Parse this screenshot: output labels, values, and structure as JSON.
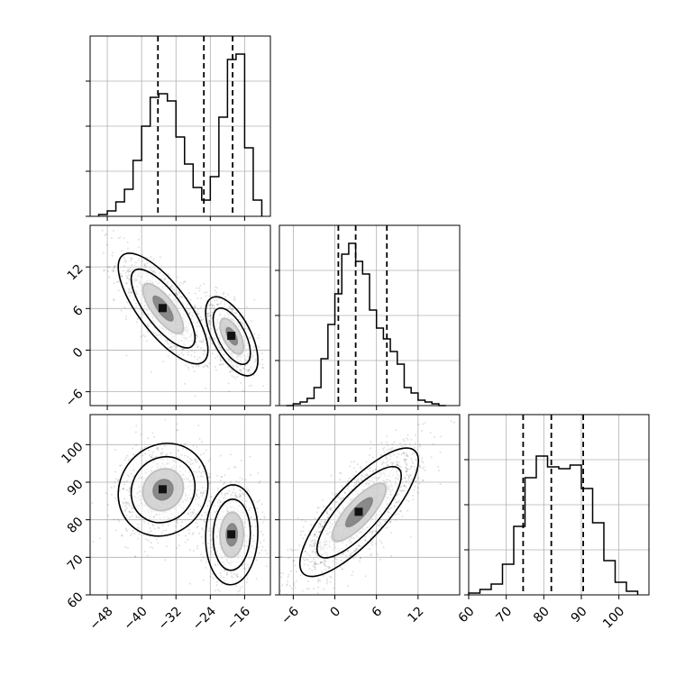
{
  "chart_data": {
    "type": "corner",
    "grid": true,
    "params": [
      {
        "id": "p0",
        "xlim": [
          -52,
          -10
        ],
        "ticks": [
          -48,
          -40,
          -32,
          -24,
          -16
        ]
      },
      {
        "id": "p1",
        "xlim": [
          -8,
          18
        ],
        "ylim": [
          -8,
          18
        ],
        "ticks": [
          -6,
          0,
          6,
          12
        ]
      },
      {
        "id": "p2",
        "xlim": [
          60,
          108
        ],
        "ylim": [
          60,
          108
        ],
        "ticks": [
          60,
          70,
          80,
          90,
          100
        ]
      }
    ],
    "histograms": [
      {
        "param": "p0",
        "ylim": [
          0,
          1.0
        ],
        "bin_edges": [
          -50,
          -48,
          -46,
          -44,
          -42,
          -40,
          -38,
          -36,
          -34,
          -32,
          -30,
          -28,
          -26,
          -24,
          -22,
          -20,
          -18,
          -16,
          -14,
          -12
        ],
        "counts": [
          0.01,
          0.03,
          0.08,
          0.15,
          0.31,
          0.5,
          0.66,
          0.68,
          0.64,
          0.44,
          0.29,
          0.16,
          0.09,
          0.22,
          0.55,
          0.87,
          0.9,
          0.38,
          0.09
        ],
        "quantiles": [
          -36.2,
          -25.5,
          -18.8
        ]
      },
      {
        "param": "p1",
        "ylim": [
          0,
          1.0
        ],
        "bin_edges": [
          -7,
          -6,
          -5,
          -4,
          -3,
          -2,
          -1,
          0,
          1,
          2,
          3,
          4,
          5,
          6,
          7,
          8,
          9,
          10,
          11,
          12,
          13,
          14,
          15,
          16
        ],
        "counts": [
          0.0,
          0.01,
          0.02,
          0.04,
          0.1,
          0.26,
          0.45,
          0.62,
          0.84,
          0.9,
          0.8,
          0.73,
          0.53,
          0.43,
          0.37,
          0.3,
          0.23,
          0.1,
          0.07,
          0.03,
          0.02,
          0.01,
          0.0
        ],
        "quantiles": [
          0.5,
          3.0,
          7.5
        ]
      },
      {
        "param": "p2",
        "ylim": [
          0,
          1.0
        ],
        "bin_edges": [
          60,
          63,
          66,
          69,
          72,
          75,
          78,
          81,
          84,
          87,
          90,
          93,
          96,
          99,
          102,
          105
        ],
        "counts": [
          0.01,
          0.03,
          0.06,
          0.17,
          0.38,
          0.65,
          0.77,
          0.71,
          0.7,
          0.72,
          0.59,
          0.4,
          0.19,
          0.07,
          0.02
        ],
        "quantiles": [
          74.5,
          82.0,
          90.5
        ]
      }
    ],
    "joint": [
      {
        "x": "p0",
        "y": "p1",
        "modes": [
          {
            "mean": [
              -35,
              6
            ],
            "sd": [
              5.5,
              4.2
            ],
            "rho": -0.75,
            "weight": 0.58
          },
          {
            "mean": [
              -19,
              2
            ],
            "sd": [
              3.2,
              3.0
            ],
            "rho": -0.6,
            "weight": 0.42
          }
        ]
      },
      {
        "x": "p0",
        "y": "p2",
        "modes": [
          {
            "mean": [
              -35,
              88
            ],
            "sd": [
              5.5,
              6.5
            ],
            "rho": 0.1,
            "weight": 0.58
          },
          {
            "mean": [
              -19,
              76
            ],
            "sd": [
              3.2,
              7.0
            ],
            "rho": 0.05,
            "weight": 0.42
          }
        ]
      },
      {
        "x": "p1",
        "y": "p2",
        "modes": [
          {
            "mean": [
              3.5,
              82
            ],
            "sd": [
              4.5,
              9.0
            ],
            "rho": 0.8,
            "weight": 1.0
          }
        ]
      }
    ]
  }
}
